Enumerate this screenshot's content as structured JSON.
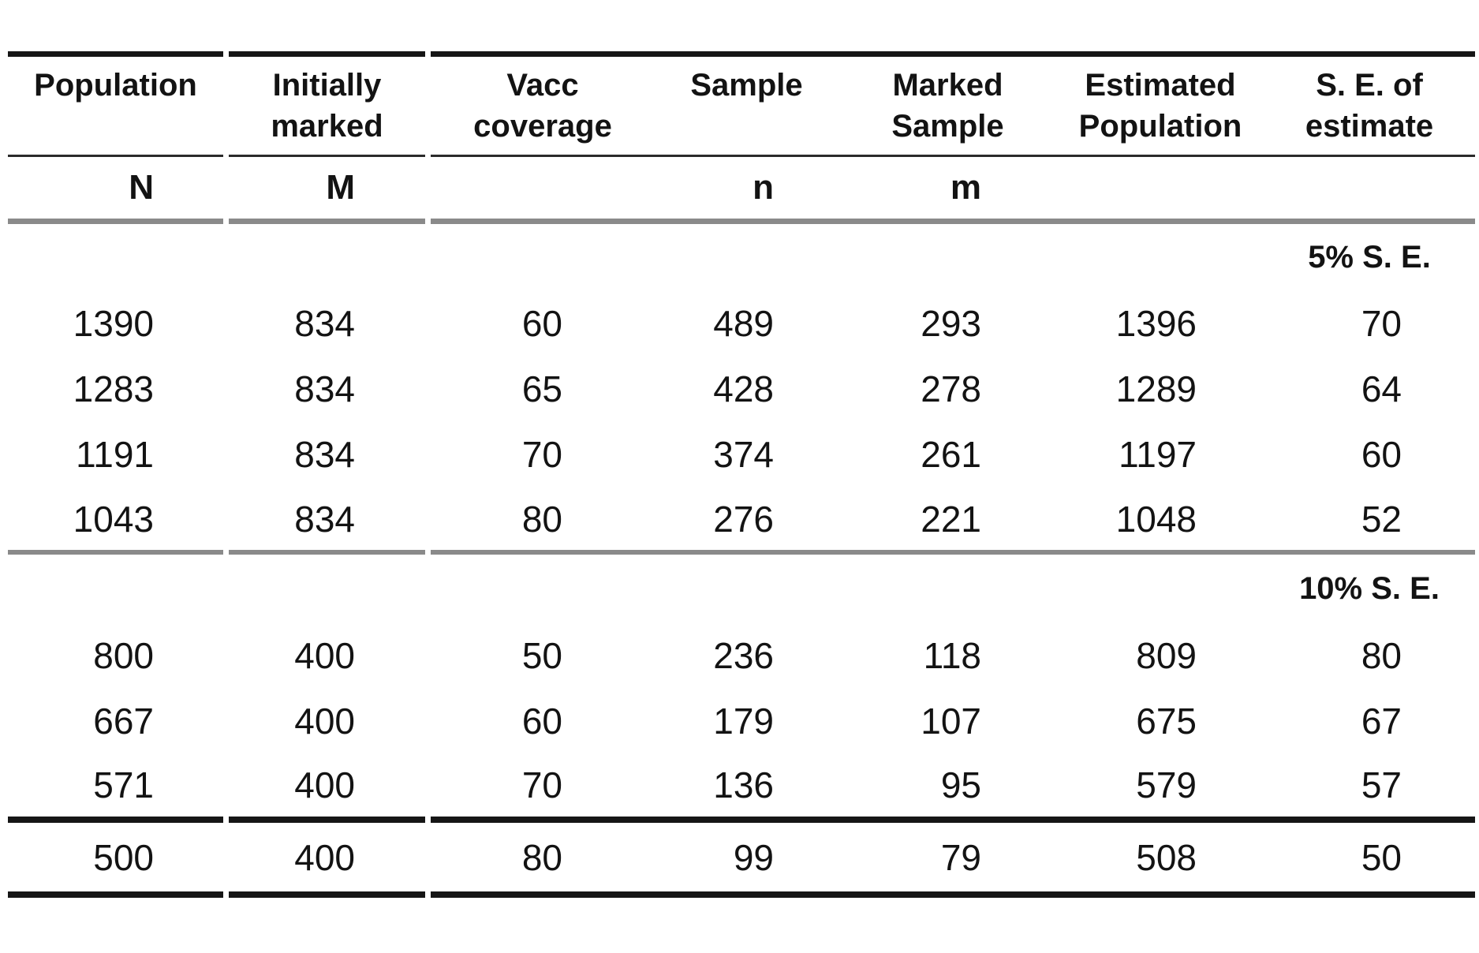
{
  "table": {
    "columns": [
      {
        "header_lines": [
          "Population"
        ],
        "sub": "N"
      },
      {
        "header_lines": [
          "Initially",
          "marked"
        ],
        "sub": "M"
      },
      {
        "header_lines": [
          "Vacc",
          "coverage"
        ],
        "sub": ""
      },
      {
        "header_lines": [
          "Sample"
        ],
        "sub": "n"
      },
      {
        "header_lines": [
          "Marked",
          "Sample"
        ],
        "sub": "m"
      },
      {
        "header_lines": [
          "Estimated",
          "Population"
        ],
        "sub": ""
      },
      {
        "header_lines": [
          "S. E. of",
          "estimate"
        ],
        "sub": ""
      }
    ],
    "sections": [
      {
        "label": "5% S. E.",
        "rows": [
          [
            1390,
            834,
            60,
            489,
            293,
            1396,
            70
          ],
          [
            1283,
            834,
            65,
            428,
            278,
            1289,
            64
          ],
          [
            1191,
            834,
            70,
            374,
            261,
            1197,
            60
          ],
          [
            1043,
            834,
            80,
            276,
            221,
            1048,
            52
          ]
        ]
      },
      {
        "label": "10% S. E.",
        "rows": [
          [
            800,
            400,
            50,
            236,
            118,
            809,
            80
          ],
          [
            667,
            400,
            60,
            179,
            107,
            675,
            67
          ],
          [
            571,
            400,
            70,
            136,
            95,
            579,
            57
          ]
        ]
      },
      {
        "label": "",
        "rows": [
          [
            500,
            400,
            80,
            99,
            79,
            508,
            50
          ]
        ]
      }
    ],
    "colors": {
      "rule_black": "#161616",
      "rule_thin": "#2b2b2b",
      "rule_gray": "#8a8a8a",
      "text": "#131313"
    }
  }
}
